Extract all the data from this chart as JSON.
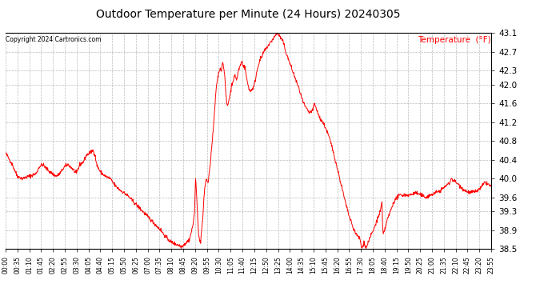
{
  "title": "Outdoor Temperature per Minute (24 Hours) 20240305",
  "copyright_text": "Copyright 2024 Cartronics.com",
  "legend_label": "Temperature  (°F)",
  "line_color": "red",
  "background_color": "#ffffff",
  "grid_color": "#aaaaaa",
  "ylim": [
    38.5,
    43.1
  ],
  "yticks": [
    38.5,
    38.9,
    39.3,
    39.6,
    40.0,
    40.4,
    40.8,
    41.2,
    41.6,
    42.0,
    42.3,
    42.7,
    43.1
  ],
  "xtick_labels": [
    "00:00",
    "00:35",
    "01:10",
    "01:45",
    "02:20",
    "02:55",
    "03:30",
    "04:05",
    "04:40",
    "05:15",
    "05:50",
    "06:25",
    "07:00",
    "07:35",
    "08:10",
    "08:45",
    "09:20",
    "09:55",
    "10:30",
    "11:05",
    "11:40",
    "12:15",
    "12:50",
    "13:25",
    "14:00",
    "14:35",
    "15:10",
    "15:45",
    "16:20",
    "16:55",
    "17:30",
    "18:05",
    "18:40",
    "19:15",
    "19:50",
    "20:25",
    "21:00",
    "21:35",
    "22:10",
    "22:45",
    "23:20",
    "23:55"
  ],
  "num_points": 1440,
  "control_points": [
    [
      0,
      40.55
    ],
    [
      20,
      40.3
    ],
    [
      35,
      40.05
    ],
    [
      50,
      40.0
    ],
    [
      70,
      40.05
    ],
    [
      90,
      40.1
    ],
    [
      100,
      40.25
    ],
    [
      110,
      40.3
    ],
    [
      130,
      40.15
    ],
    [
      150,
      40.05
    ],
    [
      160,
      40.1
    ],
    [
      175,
      40.25
    ],
    [
      185,
      40.3
    ],
    [
      200,
      40.2
    ],
    [
      210,
      40.1
    ],
    [
      220,
      40.3
    ],
    [
      230,
      40.35
    ],
    [
      240,
      40.5
    ],
    [
      250,
      40.55
    ],
    [
      260,
      40.6
    ],
    [
      265,
      40.5
    ],
    [
      270,
      40.3
    ],
    [
      280,
      40.15
    ],
    [
      295,
      40.05
    ],
    [
      310,
      40.0
    ],
    [
      325,
      39.85
    ],
    [
      340,
      39.75
    ],
    [
      360,
      39.65
    ],
    [
      380,
      39.5
    ],
    [
      400,
      39.35
    ],
    [
      420,
      39.2
    ],
    [
      440,
      39.05
    ],
    [
      460,
      38.9
    ],
    [
      475,
      38.75
    ],
    [
      490,
      38.65
    ],
    [
      505,
      38.6
    ],
    [
      515,
      38.58
    ],
    [
      520,
      38.55
    ],
    [
      530,
      38.6
    ],
    [
      545,
      38.7
    ],
    [
      555,
      39.0
    ],
    [
      560,
      39.3
    ],
    [
      563,
      40.0
    ],
    [
      566,
      39.7
    ],
    [
      569,
      39.2
    ],
    [
      572,
      38.8
    ],
    [
      575,
      38.7
    ],
    [
      578,
      38.65
    ],
    [
      581,
      38.9
    ],
    [
      584,
      39.1
    ],
    [
      587,
      39.5
    ],
    [
      590,
      39.8
    ],
    [
      595,
      40.0
    ],
    [
      600,
      39.9
    ],
    [
      605,
      40.2
    ],
    [
      610,
      40.6
    ],
    [
      615,
      41.0
    ],
    [
      620,
      41.5
    ],
    [
      625,
      42.0
    ],
    [
      630,
      42.2
    ],
    [
      635,
      42.35
    ],
    [
      640,
      42.3
    ],
    [
      643,
      42.5
    ],
    [
      646,
      42.4
    ],
    [
      649,
      42.2
    ],
    [
      652,
      41.9
    ],
    [
      655,
      41.6
    ],
    [
      658,
      41.55
    ],
    [
      661,
      41.65
    ],
    [
      664,
      41.75
    ],
    [
      667,
      41.85
    ],
    [
      670,
      42.0
    ],
    [
      675,
      42.1
    ],
    [
      680,
      42.2
    ],
    [
      685,
      42.1
    ],
    [
      690,
      42.3
    ],
    [
      695,
      42.4
    ],
    [
      700,
      42.5
    ],
    [
      705,
      42.4
    ],
    [
      710,
      42.35
    ],
    [
      715,
      42.1
    ],
    [
      720,
      41.95
    ],
    [
      725,
      41.85
    ],
    [
      730,
      41.9
    ],
    [
      735,
      41.95
    ],
    [
      740,
      42.1
    ],
    [
      745,
      42.3
    ],
    [
      750,
      42.45
    ],
    [
      755,
      42.55
    ],
    [
      760,
      42.6
    ],
    [
      765,
      42.7
    ],
    [
      770,
      42.75
    ],
    [
      775,
      42.8
    ],
    [
      780,
      42.85
    ],
    [
      785,
      42.9
    ],
    [
      790,
      42.95
    ],
    [
      795,
      43.0
    ],
    [
      800,
      43.05
    ],
    [
      805,
      43.1
    ],
    [
      810,
      43.05
    ],
    [
      815,
      43.0
    ],
    [
      820,
      42.95
    ],
    [
      825,
      42.85
    ],
    [
      830,
      42.7
    ],
    [
      840,
      42.5
    ],
    [
      850,
      42.3
    ],
    [
      860,
      42.1
    ],
    [
      870,
      41.9
    ],
    [
      880,
      41.65
    ],
    [
      890,
      41.5
    ],
    [
      900,
      41.4
    ],
    [
      910,
      41.45
    ],
    [
      915,
      41.6
    ],
    [
      920,
      41.5
    ],
    [
      925,
      41.4
    ],
    [
      930,
      41.3
    ],
    [
      940,
      41.2
    ],
    [
      950,
      41.05
    ],
    [
      960,
      40.85
    ],
    [
      970,
      40.6
    ],
    [
      980,
      40.3
    ],
    [
      990,
      40.0
    ],
    [
      1000,
      39.7
    ],
    [
      1010,
      39.4
    ],
    [
      1020,
      39.15
    ],
    [
      1030,
      38.95
    ],
    [
      1040,
      38.8
    ],
    [
      1050,
      38.72
    ],
    [
      1053,
      38.58
    ],
    [
      1056,
      38.52
    ],
    [
      1059,
      38.55
    ],
    [
      1062,
      38.65
    ],
    [
      1065,
      38.58
    ],
    [
      1068,
      38.52
    ],
    [
      1071,
      38.56
    ],
    [
      1074,
      38.65
    ],
    [
      1080,
      38.75
    ],
    [
      1090,
      38.9
    ],
    [
      1100,
      39.1
    ],
    [
      1110,
      39.3
    ],
    [
      1115,
      39.5
    ],
    [
      1117,
      39.0
    ],
    [
      1119,
      38.8
    ],
    [
      1121,
      38.85
    ],
    [
      1125,
      38.95
    ],
    [
      1130,
      39.1
    ],
    [
      1140,
      39.3
    ],
    [
      1150,
      39.5
    ],
    [
      1160,
      39.6
    ],
    [
      1170,
      39.65
    ],
    [
      1185,
      39.65
    ],
    [
      1200,
      39.65
    ],
    [
      1215,
      39.7
    ],
    [
      1230,
      39.65
    ],
    [
      1245,
      39.6
    ],
    [
      1260,
      39.65
    ],
    [
      1275,
      39.7
    ],
    [
      1290,
      39.75
    ],
    [
      1305,
      39.85
    ],
    [
      1315,
      39.9
    ],
    [
      1320,
      40.0
    ],
    [
      1330,
      39.95
    ],
    [
      1345,
      39.85
    ],
    [
      1360,
      39.75
    ],
    [
      1375,
      39.7
    ],
    [
      1390,
      39.72
    ],
    [
      1400,
      39.75
    ],
    [
      1410,
      39.82
    ],
    [
      1420,
      39.92
    ],
    [
      1430,
      39.88
    ],
    [
      1439,
      39.82
    ]
  ]
}
